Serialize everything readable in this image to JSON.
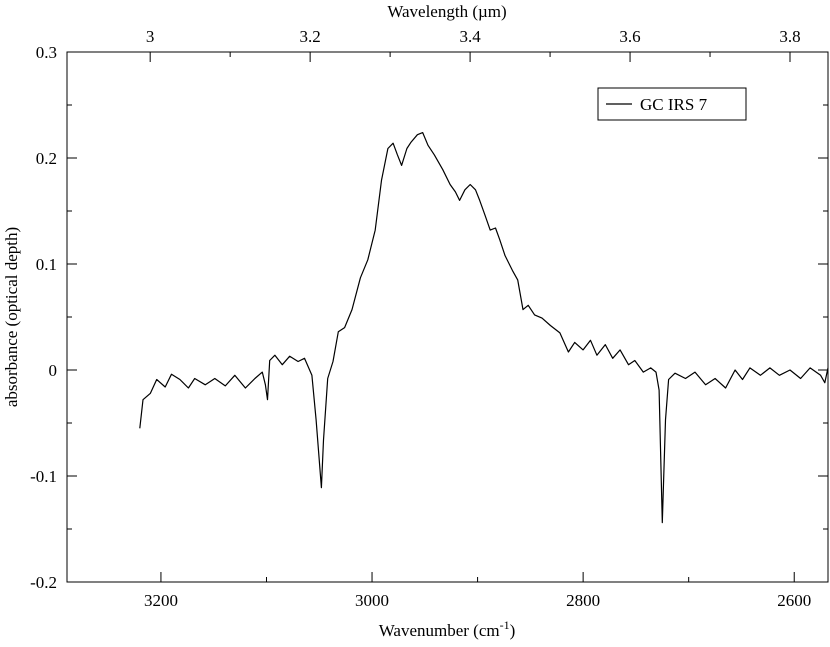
{
  "chart_data": {
    "type": "line",
    "xlabel": {
      "text": "Wavenumber (cm",
      "sup": "-1",
      "end": ")"
    },
    "x2label": "Wavelength (µm)",
    "ylabel": "absorbance (optical depth)",
    "xlim": [
      3289,
      2568
    ],
    "xticks": [
      3200,
      3000,
      2800,
      2600
    ],
    "xminor_ticks": [
      3100,
      2900,
      2700
    ],
    "x2lim": [
      2.896,
      3.8475
    ],
    "x2ticks": [
      3,
      3.2,
      3.4,
      3.6,
      3.8
    ],
    "x2minor_ticks": [
      3.1,
      3.3,
      3.5,
      3.7
    ],
    "ylim": [
      -0.2,
      0.3
    ],
    "yticks": [
      0.3,
      0.2,
      0.1,
      0,
      -0.1,
      -0.2
    ],
    "yminor_ticks": [
      0.25,
      0.15,
      0.05,
      -0.05,
      -0.15
    ],
    "legend": "upper right",
    "series": [
      {
        "name": "GC IRS 7",
        "color": "#000000",
        "x": [
          3220,
          3217,
          3210,
          3204,
          3196,
          3190,
          3182,
          3174,
          3168,
          3158,
          3149,
          3139,
          3130,
          3120,
          3111,
          3104,
          3101,
          3099,
          3097,
          3092,
          3085,
          3078,
          3070,
          3064,
          3057,
          3053,
          3048,
          3046,
          3042,
          3037,
          3032,
          3026,
          3019,
          3011,
          3004,
          2997,
          2991,
          2985,
          2980,
          2976,
          2972,
          2967,
          2963,
          2957,
          2952,
          2947,
          2941,
          2933,
          2926,
          2921,
          2917,
          2912,
          2907,
          2902,
          2898,
          2893,
          2888,
          2883,
          2879,
          2874,
          2867,
          2862,
          2857,
          2852,
          2846,
          2839,
          2831,
          2822,
          2814,
          2808,
          2800,
          2793,
          2787,
          2779,
          2772,
          2765,
          2757,
          2751,
          2743,
          2736,
          2731,
          2728,
          2725,
          2722,
          2719,
          2713,
          2703,
          2694,
          2684,
          2675,
          2665,
          2656,
          2649,
          2642,
          2632,
          2623,
          2614,
          2604,
          2594,
          2585,
          2575,
          2571,
          2568
        ],
        "values": [
          -0.055,
          -0.028,
          -0.022,
          -0.009,
          -0.016,
          -0.004,
          -0.009,
          -0.017,
          -0.008,
          -0.014,
          -0.008,
          -0.015,
          -0.005,
          -0.017,
          -0.008,
          -0.002,
          -0.014,
          -0.028,
          0.009,
          0.014,
          0.005,
          0.013,
          0.008,
          0.011,
          -0.005,
          -0.047,
          -0.111,
          -0.066,
          -0.008,
          0.008,
          0.036,
          0.04,
          0.057,
          0.087,
          0.104,
          0.132,
          0.179,
          0.209,
          0.214,
          0.203,
          0.193,
          0.209,
          0.215,
          0.222,
          0.224,
          0.212,
          0.203,
          0.189,
          0.175,
          0.168,
          0.16,
          0.17,
          0.175,
          0.17,
          0.16,
          0.146,
          0.132,
          0.134,
          0.123,
          0.108,
          0.094,
          0.085,
          0.057,
          0.061,
          0.052,
          0.049,
          0.042,
          0.035,
          0.017,
          0.026,
          0.019,
          0.028,
          0.014,
          0.024,
          0.011,
          0.019,
          0.005,
          0.009,
          -0.002,
          0.002,
          -0.002,
          -0.019,
          -0.144,
          -0.047,
          -0.009,
          -0.003,
          -0.008,
          -0.002,
          -0.014,
          -0.008,
          -0.017,
          0,
          -0.009,
          0.002,
          -0.005,
          0.002,
          -0.005,
          0,
          -0.008,
          0.002,
          -0.005,
          -0.012,
          0.002
        ]
      }
    ]
  }
}
